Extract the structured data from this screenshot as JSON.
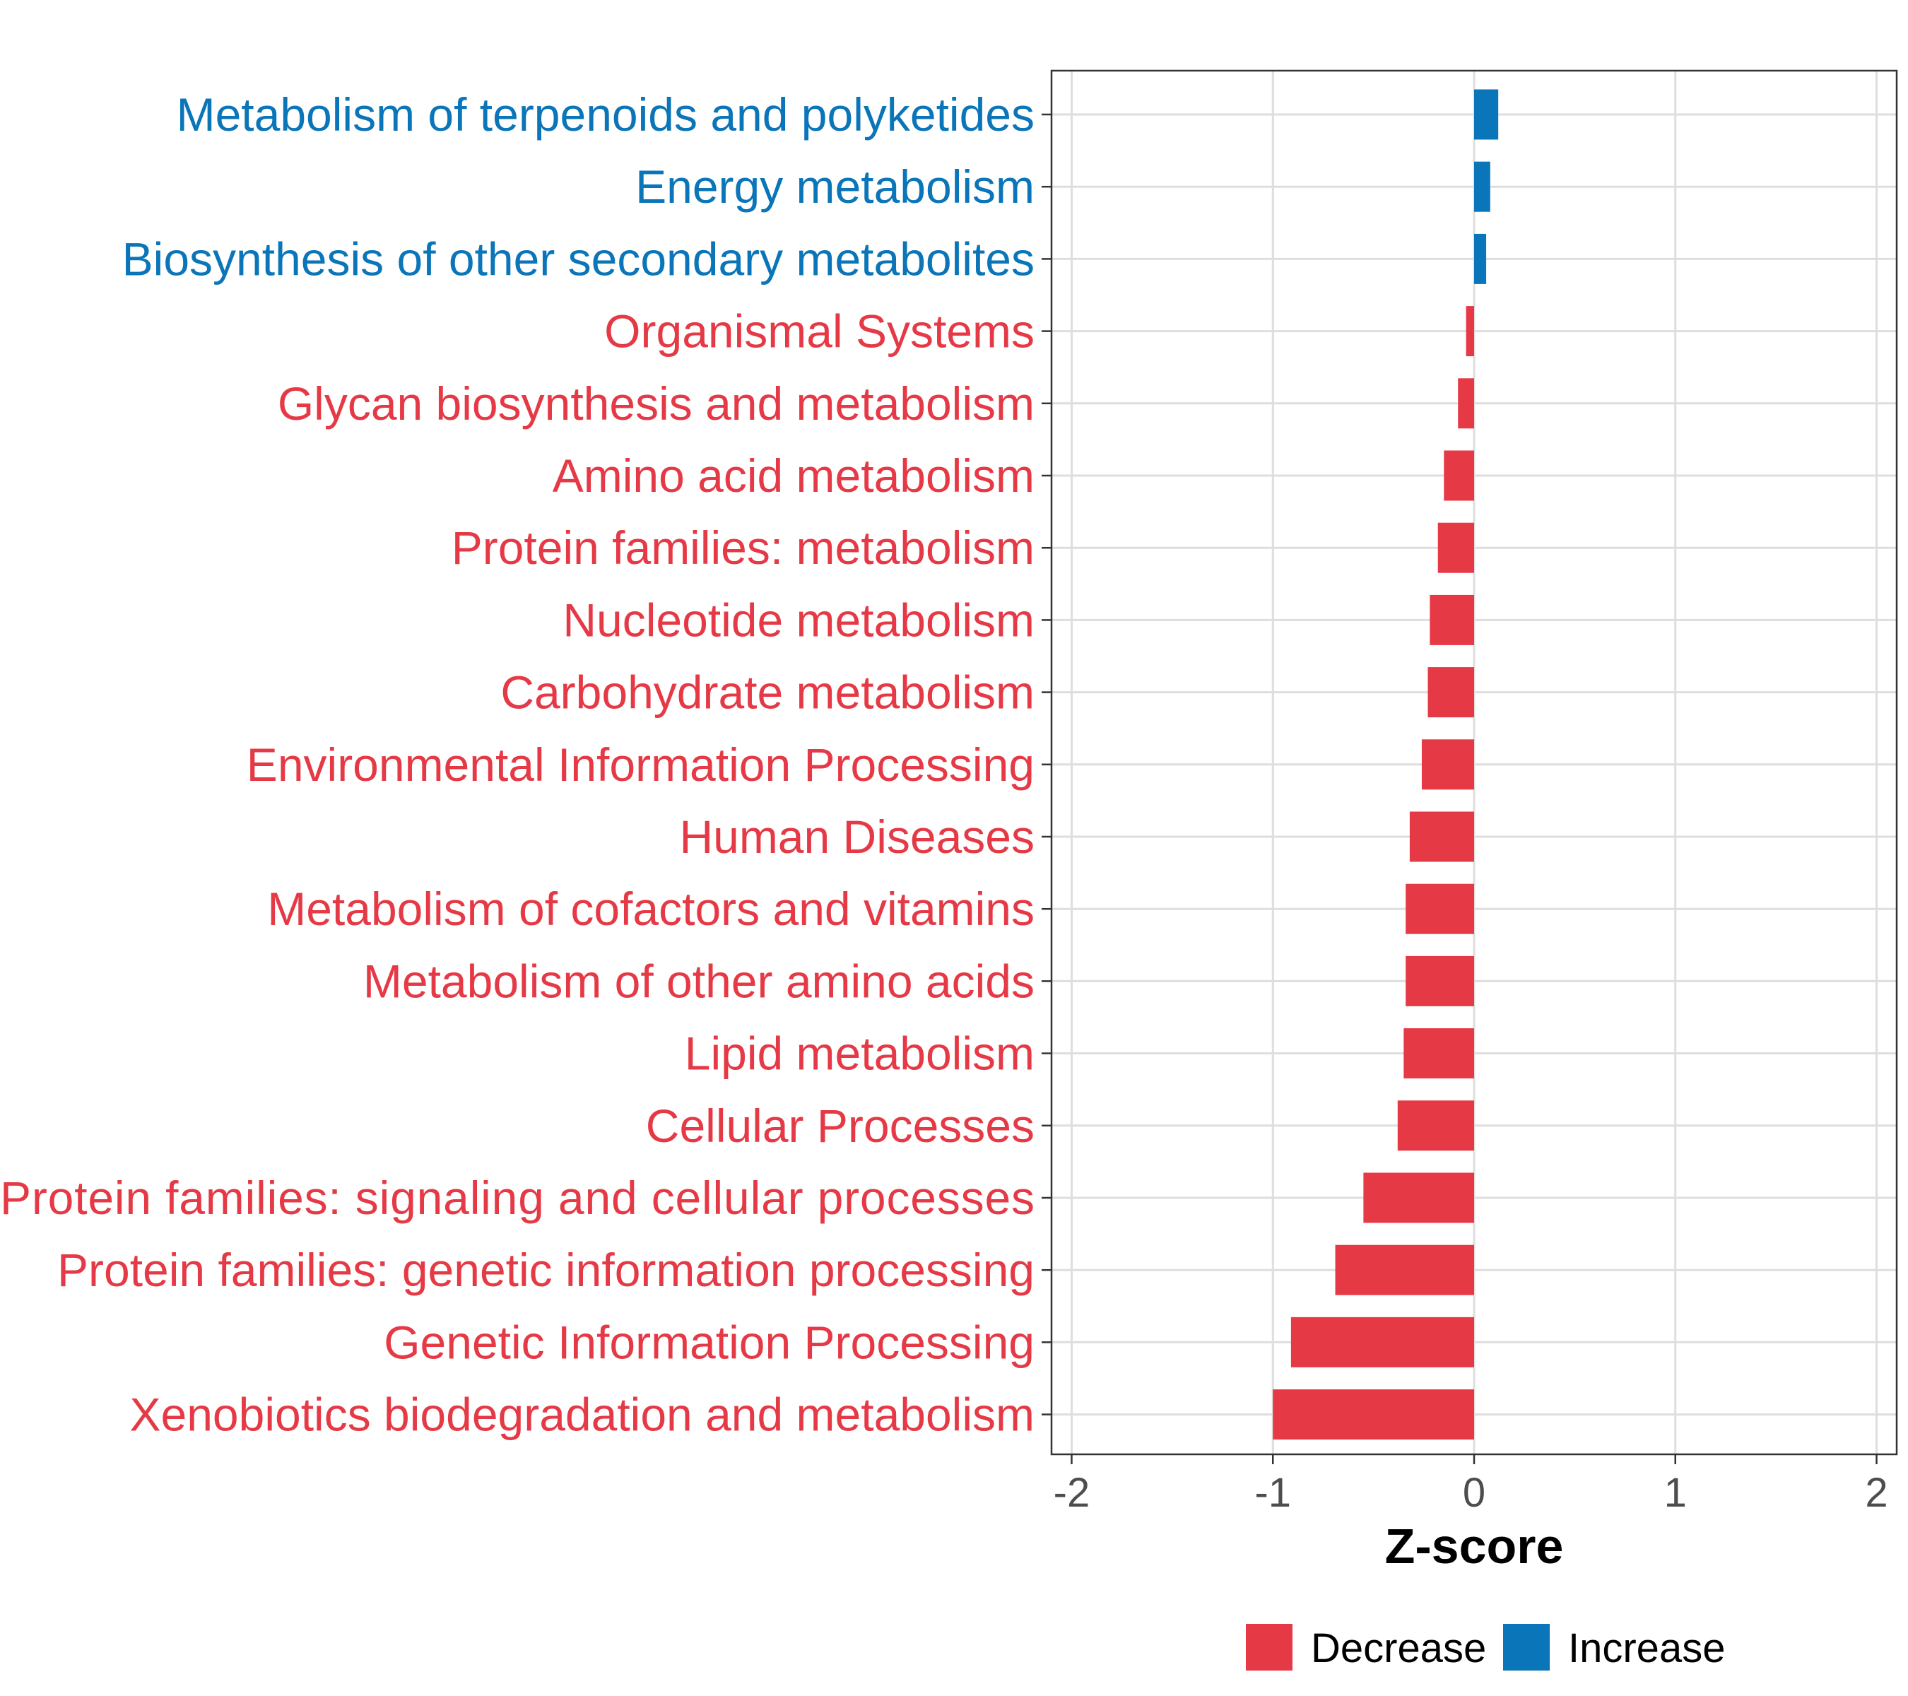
{
  "chart_data": {
    "type": "bar",
    "orientation": "horizontal",
    "title": "",
    "xlabel": "Z-score",
    "ylabel": "",
    "xlim": [
      -2.1,
      2.1
    ],
    "xticks": [
      -2,
      -1,
      0,
      1,
      2
    ],
    "xtick_labels": [
      "-2",
      "-1",
      "0",
      "1",
      "2"
    ],
    "grid": true,
    "legend_position": "bottom",
    "colors": {
      "Decrease": "#E63946",
      "Increase": "#0A75B8"
    },
    "legend": [
      {
        "name": "Decrease",
        "color": "#E63946"
      },
      {
        "name": "Increase",
        "color": "#0A75B8"
      }
    ],
    "categories": [
      "Metabolism of terpenoids and polyketides",
      "Energy metabolism",
      "Biosynthesis of other secondary metabolites",
      "Organismal Systems",
      "Glycan biosynthesis and metabolism",
      "Amino acid metabolism",
      "Protein families: metabolism",
      "Nucleotide metabolism",
      "Carbohydrate metabolism",
      "Environmental Information Processing",
      "Human Diseases",
      "Metabolism of cofactors and vitamins",
      "Metabolism of other amino acids",
      "Lipid metabolism",
      "Cellular Processes",
      "Protein families: signaling and cellular processes",
      "Protein families: genetic information processing",
      "Genetic Information Processing",
      "Xenobiotics biodegradation and metabolism"
    ],
    "values": [
      0.12,
      0.08,
      0.06,
      -0.04,
      -0.08,
      -0.15,
      -0.18,
      -0.22,
      -0.23,
      -0.26,
      -0.32,
      -0.34,
      -0.34,
      -0.35,
      -0.38,
      -0.55,
      -0.69,
      -0.91,
      -1.0
    ],
    "groups": [
      "Increase",
      "Increase",
      "Increase",
      "Decrease",
      "Decrease",
      "Decrease",
      "Decrease",
      "Decrease",
      "Decrease",
      "Decrease",
      "Decrease",
      "Decrease",
      "Decrease",
      "Decrease",
      "Decrease",
      "Decrease",
      "Decrease",
      "Decrease",
      "Decrease"
    ]
  }
}
